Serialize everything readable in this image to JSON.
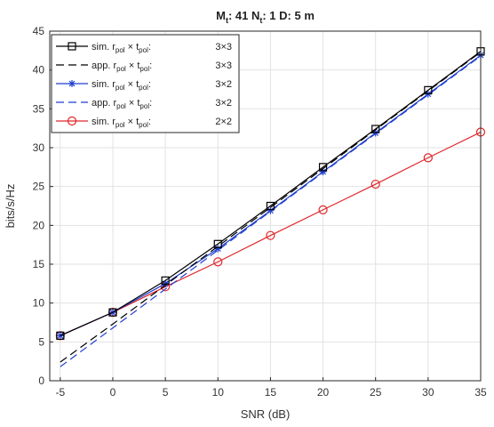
{
  "chart_data": {
    "type": "line",
    "title": {
      "parts": [
        {
          "t": "M"
        },
        {
          "t": "t",
          "sub": true
        },
        {
          "t": ": 41  N"
        },
        {
          "t": "t",
          "sub": true
        },
        {
          "t": ": 1 D: 5 m"
        }
      ]
    },
    "xlabel": "SNR (dB)",
    "ylabel": "bits/s/Hz",
    "xlim": [
      -6,
      35
    ],
    "ylim": [
      0,
      45
    ],
    "xticks": [
      -5,
      0,
      5,
      10,
      15,
      20,
      25,
      30,
      35
    ],
    "yticks": [
      0,
      5,
      10,
      15,
      20,
      25,
      30,
      35,
      40,
      45
    ],
    "grid": true,
    "legend_position": "top-left",
    "series": [
      {
        "name": "sim. r_pol × t_pol: 3×3",
        "label": {
          "prefix": "sim.",
          "config": "3×3"
        },
        "color": "#000000",
        "dash": "solid",
        "marker": "square",
        "x": [
          -5,
          0,
          5,
          10,
          15,
          20,
          25,
          30,
          35
        ],
        "y": [
          5.8,
          8.8,
          12.9,
          17.6,
          22.5,
          27.5,
          32.4,
          37.4,
          42.4
        ]
      },
      {
        "name": "app. r_pol × t_pol: 3×3",
        "label": {
          "prefix": "app.",
          "config": "3×3"
        },
        "color": "#000000",
        "dash": "dashed",
        "marker": "none",
        "x": [
          -5,
          0,
          5,
          10,
          15,
          20,
          25,
          30,
          35
        ],
        "y": [
          2.4,
          7.3,
          12.3,
          17.3,
          22.3,
          27.3,
          32.3,
          37.3,
          42.3
        ]
      },
      {
        "name": "sim. r_pol × t_pol: 3×2",
        "label": {
          "prefix": "sim.",
          "config": "3×2"
        },
        "color": "#1f3fd0",
        "dash": "solid",
        "marker": "star",
        "x": [
          -5,
          0,
          5,
          10,
          15,
          20,
          25,
          30,
          35
        ],
        "y": [
          5.8,
          8.8,
          12.5,
          17.0,
          21.9,
          26.9,
          31.9,
          36.9,
          41.9
        ]
      },
      {
        "name": "app. r_pol × t_pol: 3×2",
        "label": {
          "prefix": "app.",
          "config": "3×2"
        },
        "color": "#1f3fd0",
        "dash": "dashed",
        "marker": "none",
        "x": [
          -5,
          0,
          5,
          10,
          15,
          20,
          25,
          30,
          35
        ],
        "y": [
          1.8,
          6.8,
          11.8,
          16.8,
          21.8,
          26.8,
          31.8,
          36.8,
          41.8
        ]
      },
      {
        "name": "sim. r_pol × t_pol: 2×2",
        "label": {
          "prefix": "sim.",
          "config": "2×2"
        },
        "color": "#e0262a",
        "dash": "solid",
        "marker": "circle",
        "x": [
          -5,
          0,
          5,
          10,
          15,
          20,
          25,
          30,
          35
        ],
        "y": [
          5.8,
          8.8,
          12.1,
          15.3,
          18.7,
          22.0,
          25.3,
          28.7,
          32.0
        ]
      }
    ]
  }
}
